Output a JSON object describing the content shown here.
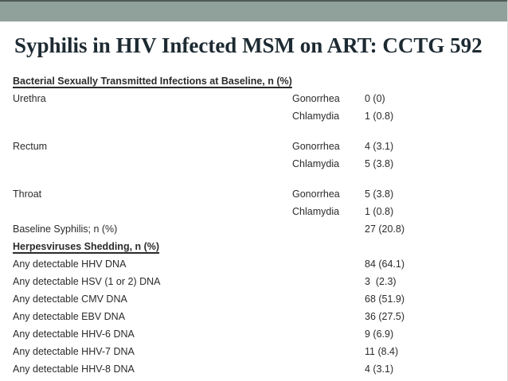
{
  "slide": {
    "title": "Syphilis in HIV Infected MSM on ART: CCTG 592",
    "accent_bar_color": "#90a09a",
    "accent_bar_top_edge_color": "#4d5a55",
    "title_color": "#1d2a32"
  },
  "table": {
    "rows": [
      {
        "kind": "section",
        "label": "Bacterial Sexually Transmitted Infections at Baseline, n (%)",
        "gap": false
      },
      {
        "kind": "data",
        "label": "Urethra",
        "test": "Gonorrhea",
        "value": "0 (0)",
        "gap": false
      },
      {
        "kind": "data",
        "label": "",
        "test": "Chlamydia",
        "value": "1 (0.8)",
        "gap": false
      },
      {
        "kind": "data",
        "label": "Rectum",
        "test": "Gonorrhea",
        "value": "4 (3.1)",
        "gap": true
      },
      {
        "kind": "data",
        "label": "",
        "test": "Chlamydia",
        "value": "5 (3.8)",
        "gap": false
      },
      {
        "kind": "data",
        "label": "Throat",
        "test": "Gonorrhea",
        "value": "5 (3.8)",
        "gap": true
      },
      {
        "kind": "data",
        "label": "",
        "test": "Chlamydia",
        "value": "1 (0.8)",
        "gap": false
      },
      {
        "kind": "data",
        "label": "Baseline Syphilis; n (%)",
        "test": "",
        "value": "27 (20.8)",
        "gap": false
      },
      {
        "kind": "section",
        "label": "Herpesviruses Shedding, n (%)",
        "gap": false
      },
      {
        "kind": "data",
        "label": "Any detectable HHV DNA",
        "test": "",
        "value": "84 (64.1)",
        "gap": false
      },
      {
        "kind": "data",
        "label": "Any detectable HSV (1 or 2) DNA",
        "test": "",
        "value": "3  (2.3)",
        "gap": false
      },
      {
        "kind": "data",
        "label": "Any detectable CMV DNA",
        "test": "",
        "value": "68 (51.9)",
        "gap": false
      },
      {
        "kind": "data",
        "label": "Any detectable EBV DNA",
        "test": "",
        "value": "36 (27.5)",
        "gap": false
      },
      {
        "kind": "data",
        "label": "Any detectable HHV-6 DNA",
        "test": "",
        "value": "9 (6.9)",
        "gap": false
      },
      {
        "kind": "data",
        "label": "Any detectable HHV-7 DNA",
        "test": "",
        "value": "11 (8.4)",
        "gap": false
      },
      {
        "kind": "data",
        "label": "Any detectable HHV-8 DNA",
        "test": "",
        "value": "4 (3.1)",
        "gap": false
      }
    ]
  }
}
